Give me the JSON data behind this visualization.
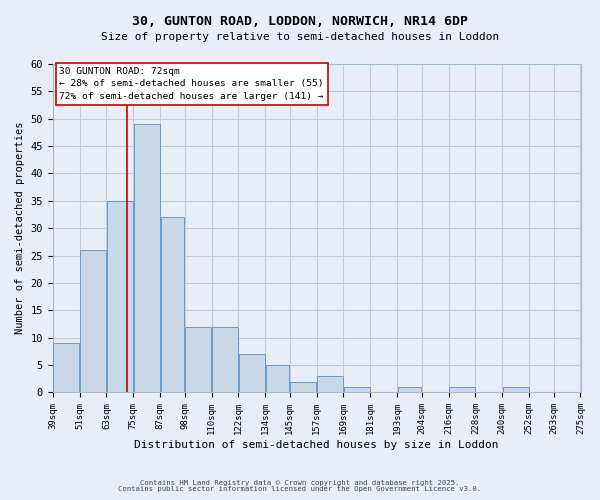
{
  "title_line1": "30, GUNTON ROAD, LODDON, NORWICH, NR14 6DP",
  "title_line2": "Size of property relative to semi-detached houses in Loddon",
  "xlabel": "Distribution of semi-detached houses by size in Loddon",
  "ylabel": "Number of semi-detached properties",
  "bar_left_edges": [
    39,
    51,
    63,
    75,
    87,
    98,
    110,
    122,
    134,
    145,
    157,
    169,
    181,
    193,
    204,
    216,
    228,
    240,
    252,
    263
  ],
  "bar_widths": [
    12,
    12,
    12,
    12,
    11,
    12,
    12,
    12,
    11,
    12,
    12,
    12,
    12,
    11,
    12,
    12,
    12,
    12,
    11,
    12
  ],
  "bar_heights": [
    9,
    26,
    35,
    49,
    32,
    12,
    12,
    7,
    5,
    2,
    3,
    1,
    0,
    1,
    0,
    1,
    0,
    1,
    0,
    0
  ],
  "xtick_labels": [
    "39sqm",
    "51sqm",
    "63sqm",
    "75sqm",
    "87sqm",
    "98sqm",
    "110sqm",
    "122sqm",
    "134sqm",
    "145sqm",
    "157sqm",
    "169sqm",
    "181sqm",
    "193sqm",
    "204sqm",
    "216sqm",
    "228sqm",
    "240sqm",
    "252sqm",
    "263sqm",
    "275sqm"
  ],
  "xtick_positions": [
    39,
    51,
    63,
    75,
    87,
    98,
    110,
    122,
    134,
    145,
    157,
    169,
    181,
    193,
    204,
    216,
    228,
    240,
    252,
    263,
    275
  ],
  "ylim": [
    0,
    60
  ],
  "yticks": [
    0,
    5,
    10,
    15,
    20,
    25,
    30,
    35,
    40,
    45,
    50,
    55,
    60
  ],
  "bar_color": "#c8d8e8",
  "bar_edge_color": "#6699cc",
  "grid_color": "#c0ccdd",
  "background_color": "#e8eef8",
  "annotation_label": "30 GUNTON ROAD: 72sqm",
  "annotation_smaller": "← 28% of semi-detached houses are smaller (55)",
  "annotation_larger": "72% of semi-detached houses are larger (141) →",
  "vline_x": 72,
  "vline_color": "#cc0000",
  "footnote1": "Contains HM Land Registry data © Crown copyright and database right 2025.",
  "footnote2": "Contains public sector information licensed under the Open Government Licence v3.0."
}
